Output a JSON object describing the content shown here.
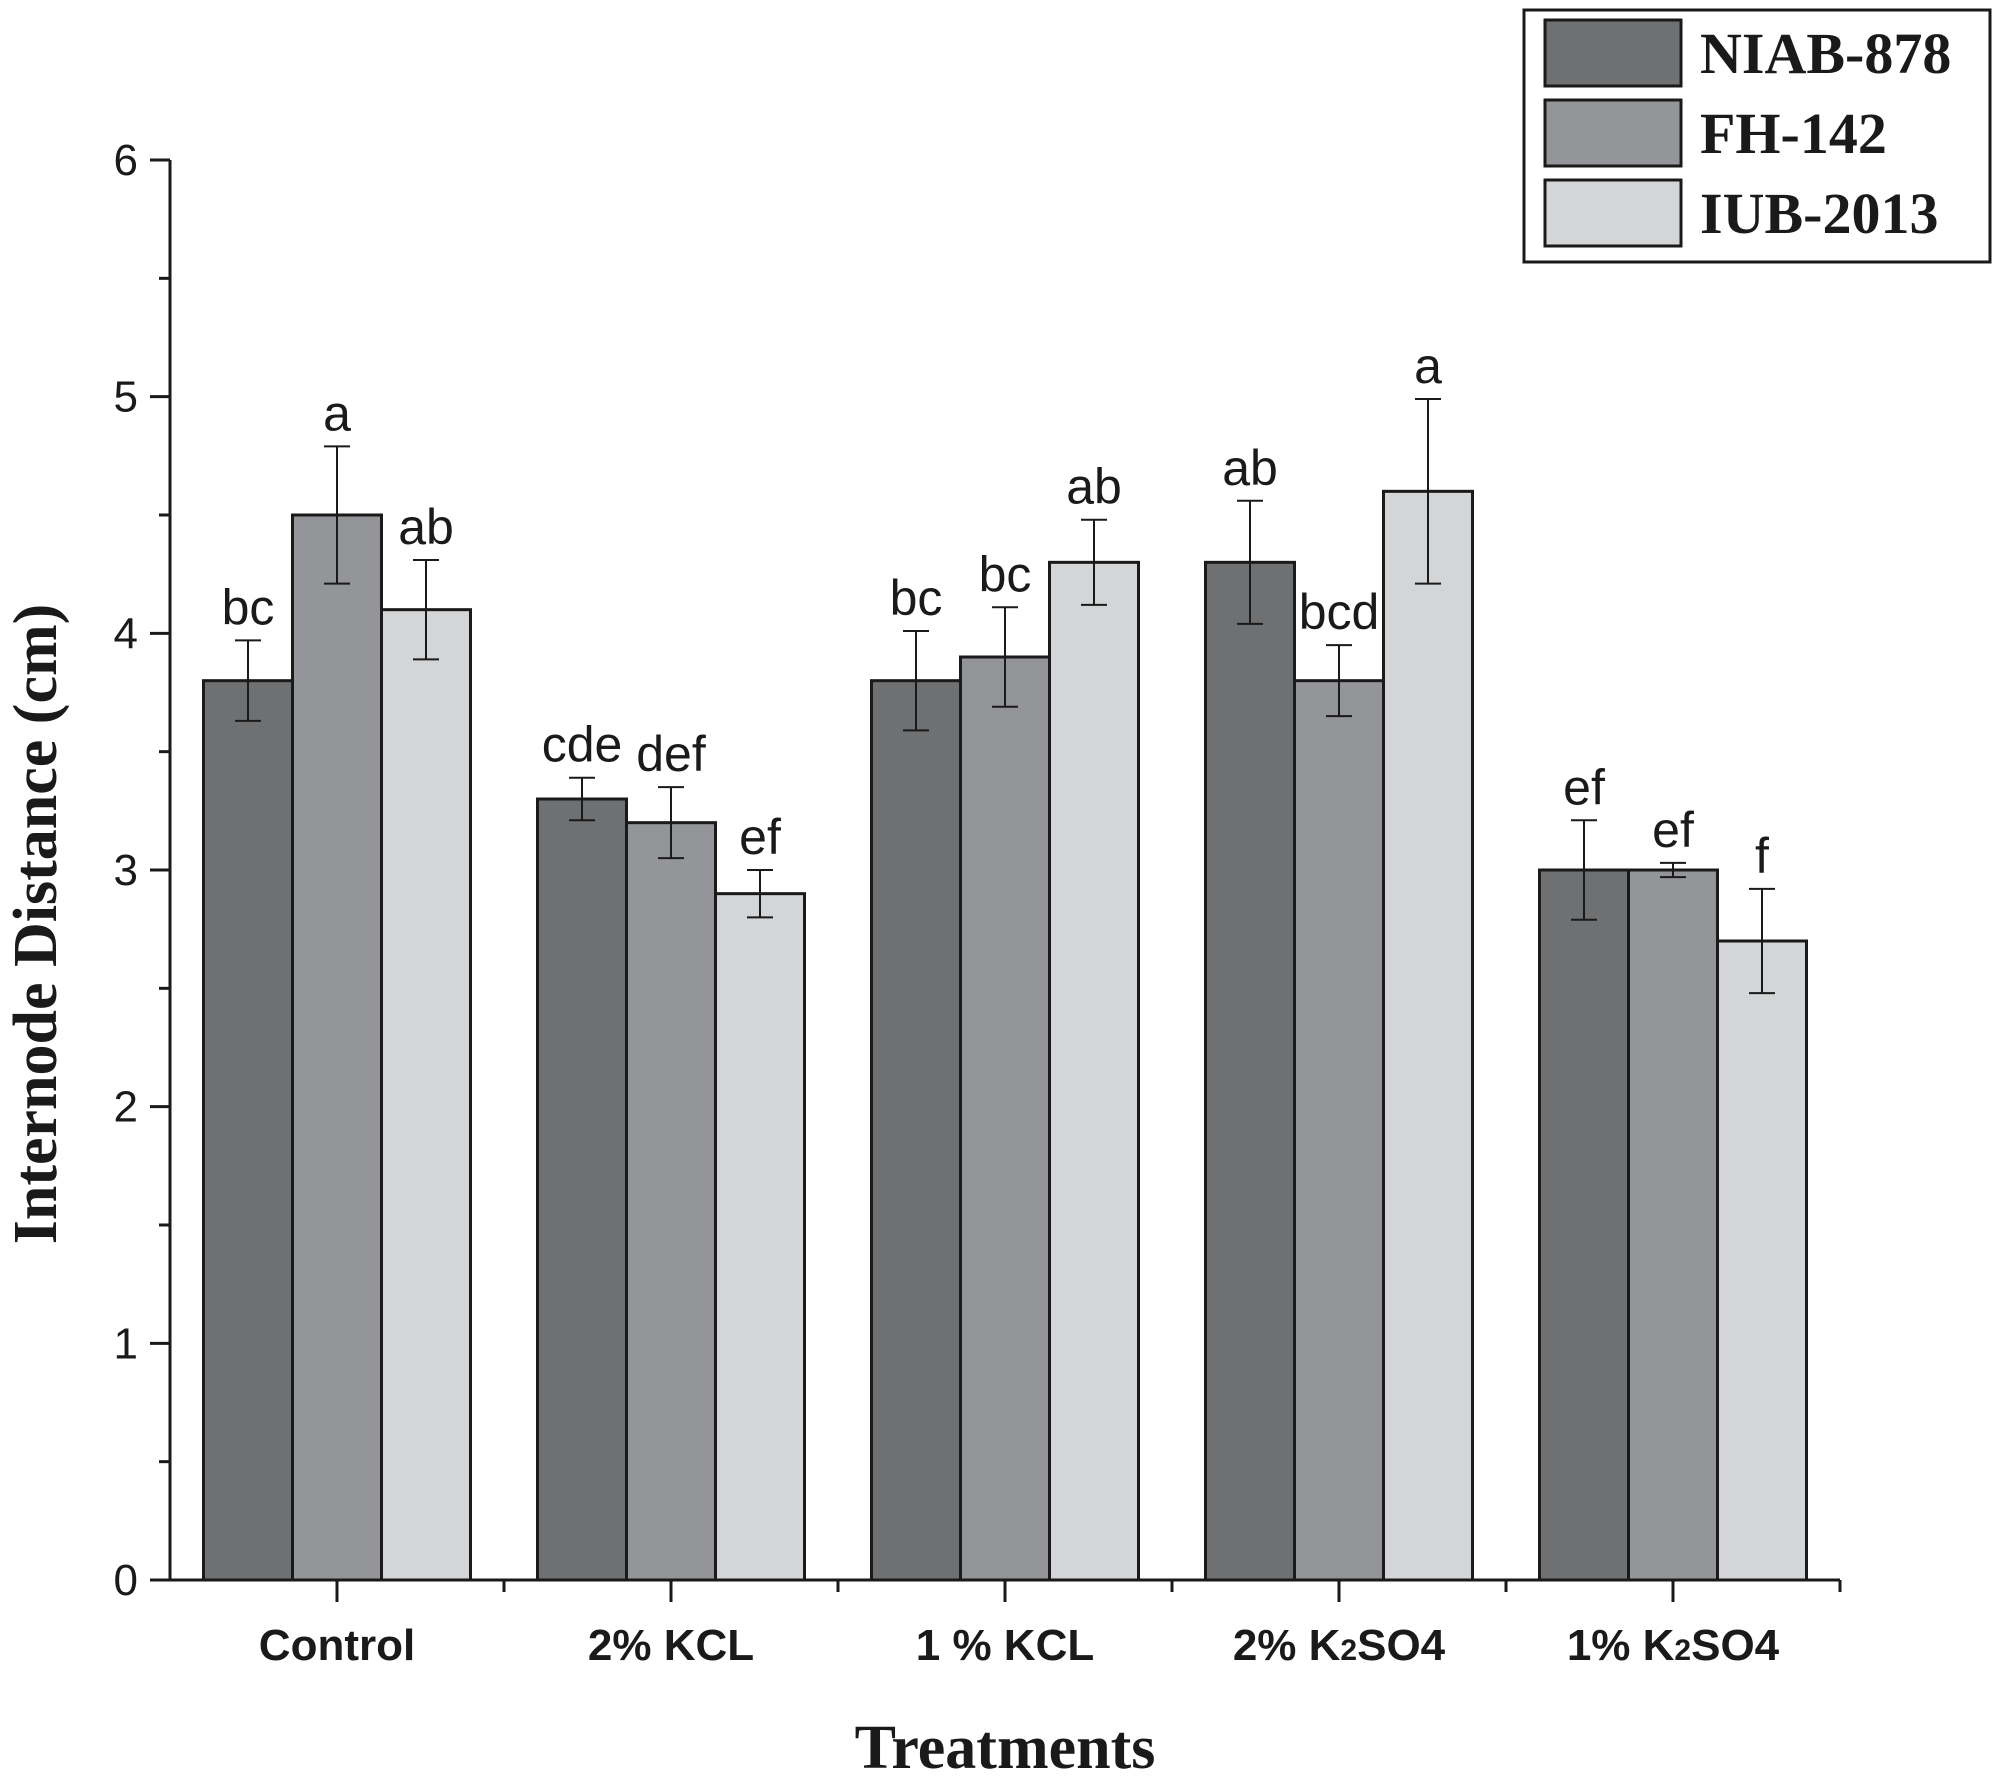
{
  "chart_data": {
    "type": "bar",
    "title": "",
    "xlabel": "Treatments",
    "ylabel": "Internode Distance (cm)",
    "ylim": [
      0,
      6
    ],
    "yticks": [
      "0",
      "1",
      "2",
      "3",
      "4",
      "5",
      "6"
    ],
    "grid": false,
    "legend_position": "top-right",
    "categories": [
      {
        "pre": "Control",
        "sub": "",
        "post": ""
      },
      {
        "pre": "2% KCL",
        "sub": "",
        "post": ""
      },
      {
        "pre": "1 % KCL",
        "sub": "",
        "post": ""
      },
      {
        "pre": "2% K",
        "sub": "2",
        "post": "SO4"
      },
      {
        "pre": "1% K",
        "sub": "2",
        "post": "SO4"
      }
    ],
    "series": [
      {
        "name": "NIAB-878",
        "color": "#6f7072",
        "values": [
          3.8,
          3.3,
          3.8,
          4.3,
          3.0
        ],
        "errors": [
          0.17,
          0.09,
          0.21,
          0.26,
          0.21
        ],
        "letters": [
          "bc",
          "cde",
          "bc",
          "ab",
          "ef"
        ]
      },
      {
        "name": "FH-142",
        "color": "#949598",
        "values": [
          4.5,
          3.2,
          3.9,
          3.8,
          3.0
        ],
        "errors": [
          0.29,
          0.15,
          0.21,
          0.15,
          0.03
        ],
        "letters": [
          "a",
          "def",
          "bc",
          "bcd",
          "ef"
        ]
      },
      {
        "name": "IUB-2013",
        "color": "#d4d5d7",
        "values": [
          4.1,
          2.9,
          4.3,
          4.6,
          2.7
        ],
        "errors": [
          0.21,
          0.1,
          0.18,
          0.39,
          0.22
        ],
        "letters": [
          "ab",
          "ef",
          "ab",
          "a",
          "f"
        ]
      }
    ]
  }
}
